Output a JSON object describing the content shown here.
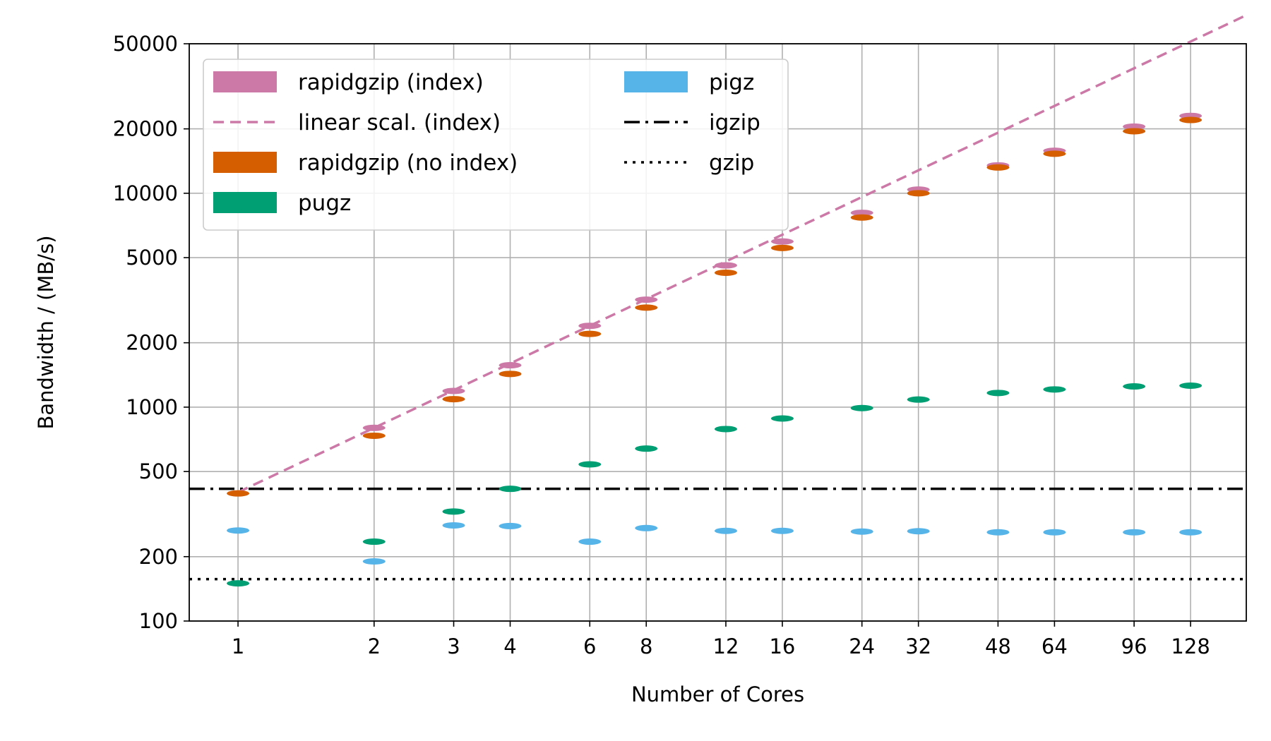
{
  "chart_data": {
    "type": "violin",
    "xlabel": "Number of Cores",
    "ylabel": "Bandwidth / (MB/s)",
    "x_scale": "log2",
    "y_scale": "log10",
    "xlim": [
      0.78,
      170
    ],
    "ylim": [
      100,
      50000
    ],
    "grid": true,
    "x_ticks": [
      1,
      2,
      3,
      4,
      6,
      8,
      12,
      16,
      24,
      32,
      48,
      64,
      96,
      128
    ],
    "x_tick_labels": [
      "1",
      "2",
      "3",
      "4",
      "6",
      "8",
      "12",
      "16",
      "24",
      "32",
      "48",
      "64",
      "96",
      "128"
    ],
    "y_ticks": [
      100,
      200,
      500,
      1000,
      2000,
      5000,
      10000,
      20000,
      50000
    ],
    "y_tick_labels": [
      "100",
      "200",
      "500",
      "1000",
      "2000",
      "5000",
      "10000",
      "20000",
      "50000"
    ],
    "legend_position": "top-left",
    "legend": [
      {
        "label": "rapidgzip (index)",
        "kind": "patch",
        "color": "#CC79A7"
      },
      {
        "label": "linear scal. (index)",
        "kind": "dashed",
        "color": "#CC79A7"
      },
      {
        "label": "rapidgzip (no index)",
        "kind": "patch",
        "color": "#D55E00"
      },
      {
        "label": "pugz",
        "kind": "patch",
        "color": "#009E73"
      },
      {
        "label": "pigz",
        "kind": "patch",
        "color": "#56B4E9"
      },
      {
        "label": "igzip",
        "kind": "dashdot",
        "color": "#000000"
      },
      {
        "label": "gzip",
        "kind": "dotted",
        "color": "#000000"
      }
    ],
    "series": [
      {
        "name": "rapidgzip (index)",
        "color": "#CC79A7",
        "x": [
          2,
          3,
          4,
          6,
          8,
          12,
          16,
          24,
          32,
          48,
          64,
          96,
          128
        ],
        "values": [
          800,
          1190,
          1570,
          2400,
          3180,
          4600,
          5950,
          8100,
          10400,
          13500,
          15800,
          20500,
          23000
        ]
      },
      {
        "name": "rapidgzip (no index)",
        "color": "#D55E00",
        "x": [
          1,
          2,
          3,
          4,
          6,
          8,
          12,
          16,
          24,
          32,
          48,
          64,
          96,
          128
        ],
        "values": [
          395,
          735,
          1090,
          1430,
          2200,
          2920,
          4250,
          5550,
          7700,
          10000,
          13200,
          15300,
          19500,
          22000
        ]
      },
      {
        "name": "pugz",
        "color": "#009E73",
        "x": [
          1,
          2,
          3,
          4,
          6,
          8,
          12,
          16,
          24,
          32,
          48,
          64,
          96,
          128
        ],
        "values": [
          150,
          235,
          325,
          415,
          540,
          640,
          790,
          885,
          990,
          1085,
          1165,
          1210,
          1250,
          1260
        ]
      },
      {
        "name": "pigz",
        "color": "#56B4E9",
        "x": [
          1,
          2,
          3,
          4,
          6,
          8,
          12,
          16,
          24,
          32,
          48,
          64,
          96,
          128
        ],
        "values": [
          265,
          190,
          280,
          278,
          235,
          272,
          264,
          264,
          262,
          263,
          260,
          260,
          260,
          260
        ]
      }
    ],
    "linear_scaling": {
      "name": "linear scal. (index)",
      "base_cores": 1,
      "base_value": 400,
      "color": "#CC79A7"
    },
    "reference_lines": [
      {
        "name": "igzip",
        "value": 415,
        "style": "dashdot",
        "color": "#000000"
      },
      {
        "name": "gzip",
        "value": 157,
        "style": "dotted",
        "color": "#000000"
      }
    ]
  }
}
